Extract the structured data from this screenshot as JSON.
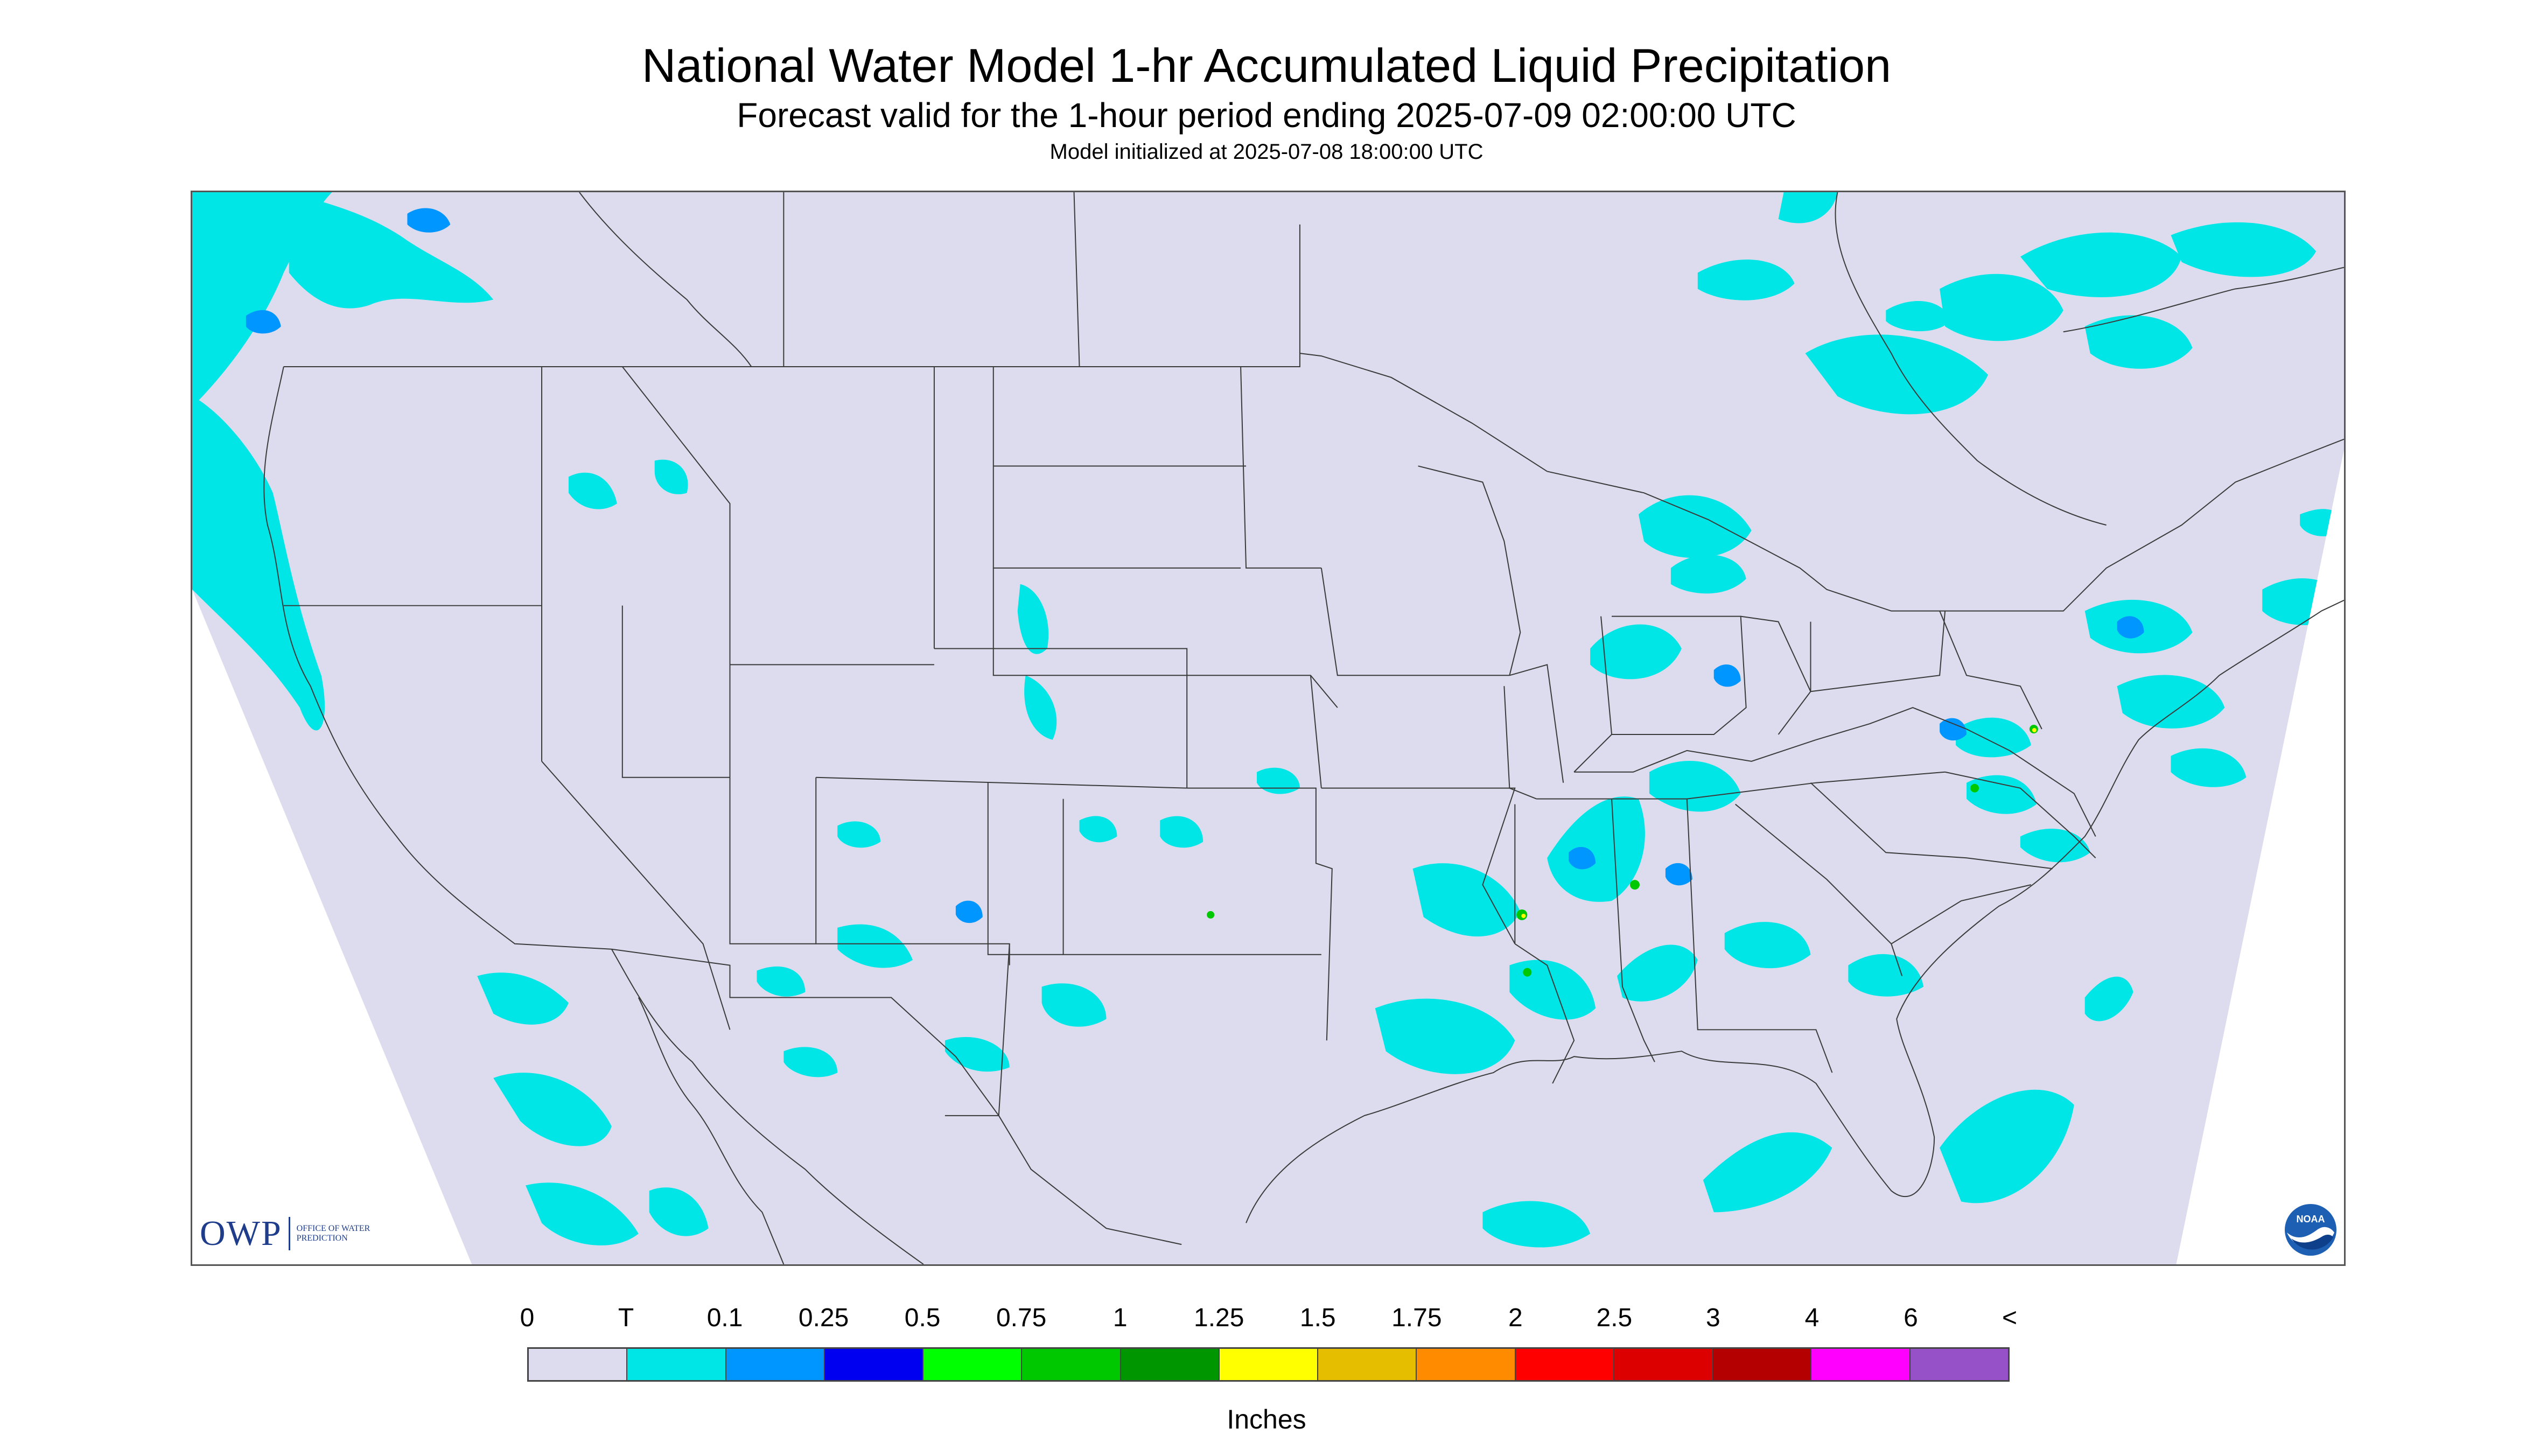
{
  "header": {
    "title": "National Water Model 1-hr Accumulated Liquid Precipitation",
    "subtitle": "Forecast valid for the 1-hour period ending 2025-07-09 02:00:00 UTC",
    "init": "Model initialized at 2025-07-08 18:00:00 UTC"
  },
  "map": {
    "background_color": "#dcdcee",
    "outside_color": "#ffffff",
    "boundary_color": "#3a3a3a"
  },
  "logos": {
    "owp_text": "OWP",
    "owp_subtitle": "Office of Water Prediction",
    "noaa_text": "NOAA"
  },
  "legend": {
    "labels": [
      "0",
      "T",
      "0.1",
      "0.25",
      "0.5",
      "0.75",
      "1",
      "1.25",
      "1.5",
      "1.75",
      "2",
      "2.5",
      "3",
      "4",
      "6",
      "<"
    ],
    "colors": [
      "#dcdcee",
      "#00e6e6",
      "#0096ff",
      "#0000f0",
      "#00ff00",
      "#00c800",
      "#009600",
      "#ffff00",
      "#e6be00",
      "#ff8c00",
      "#ff0000",
      "#dc0000",
      "#b40000",
      "#ff00ff",
      "#9650c8"
    ],
    "units": "Inches"
  }
}
